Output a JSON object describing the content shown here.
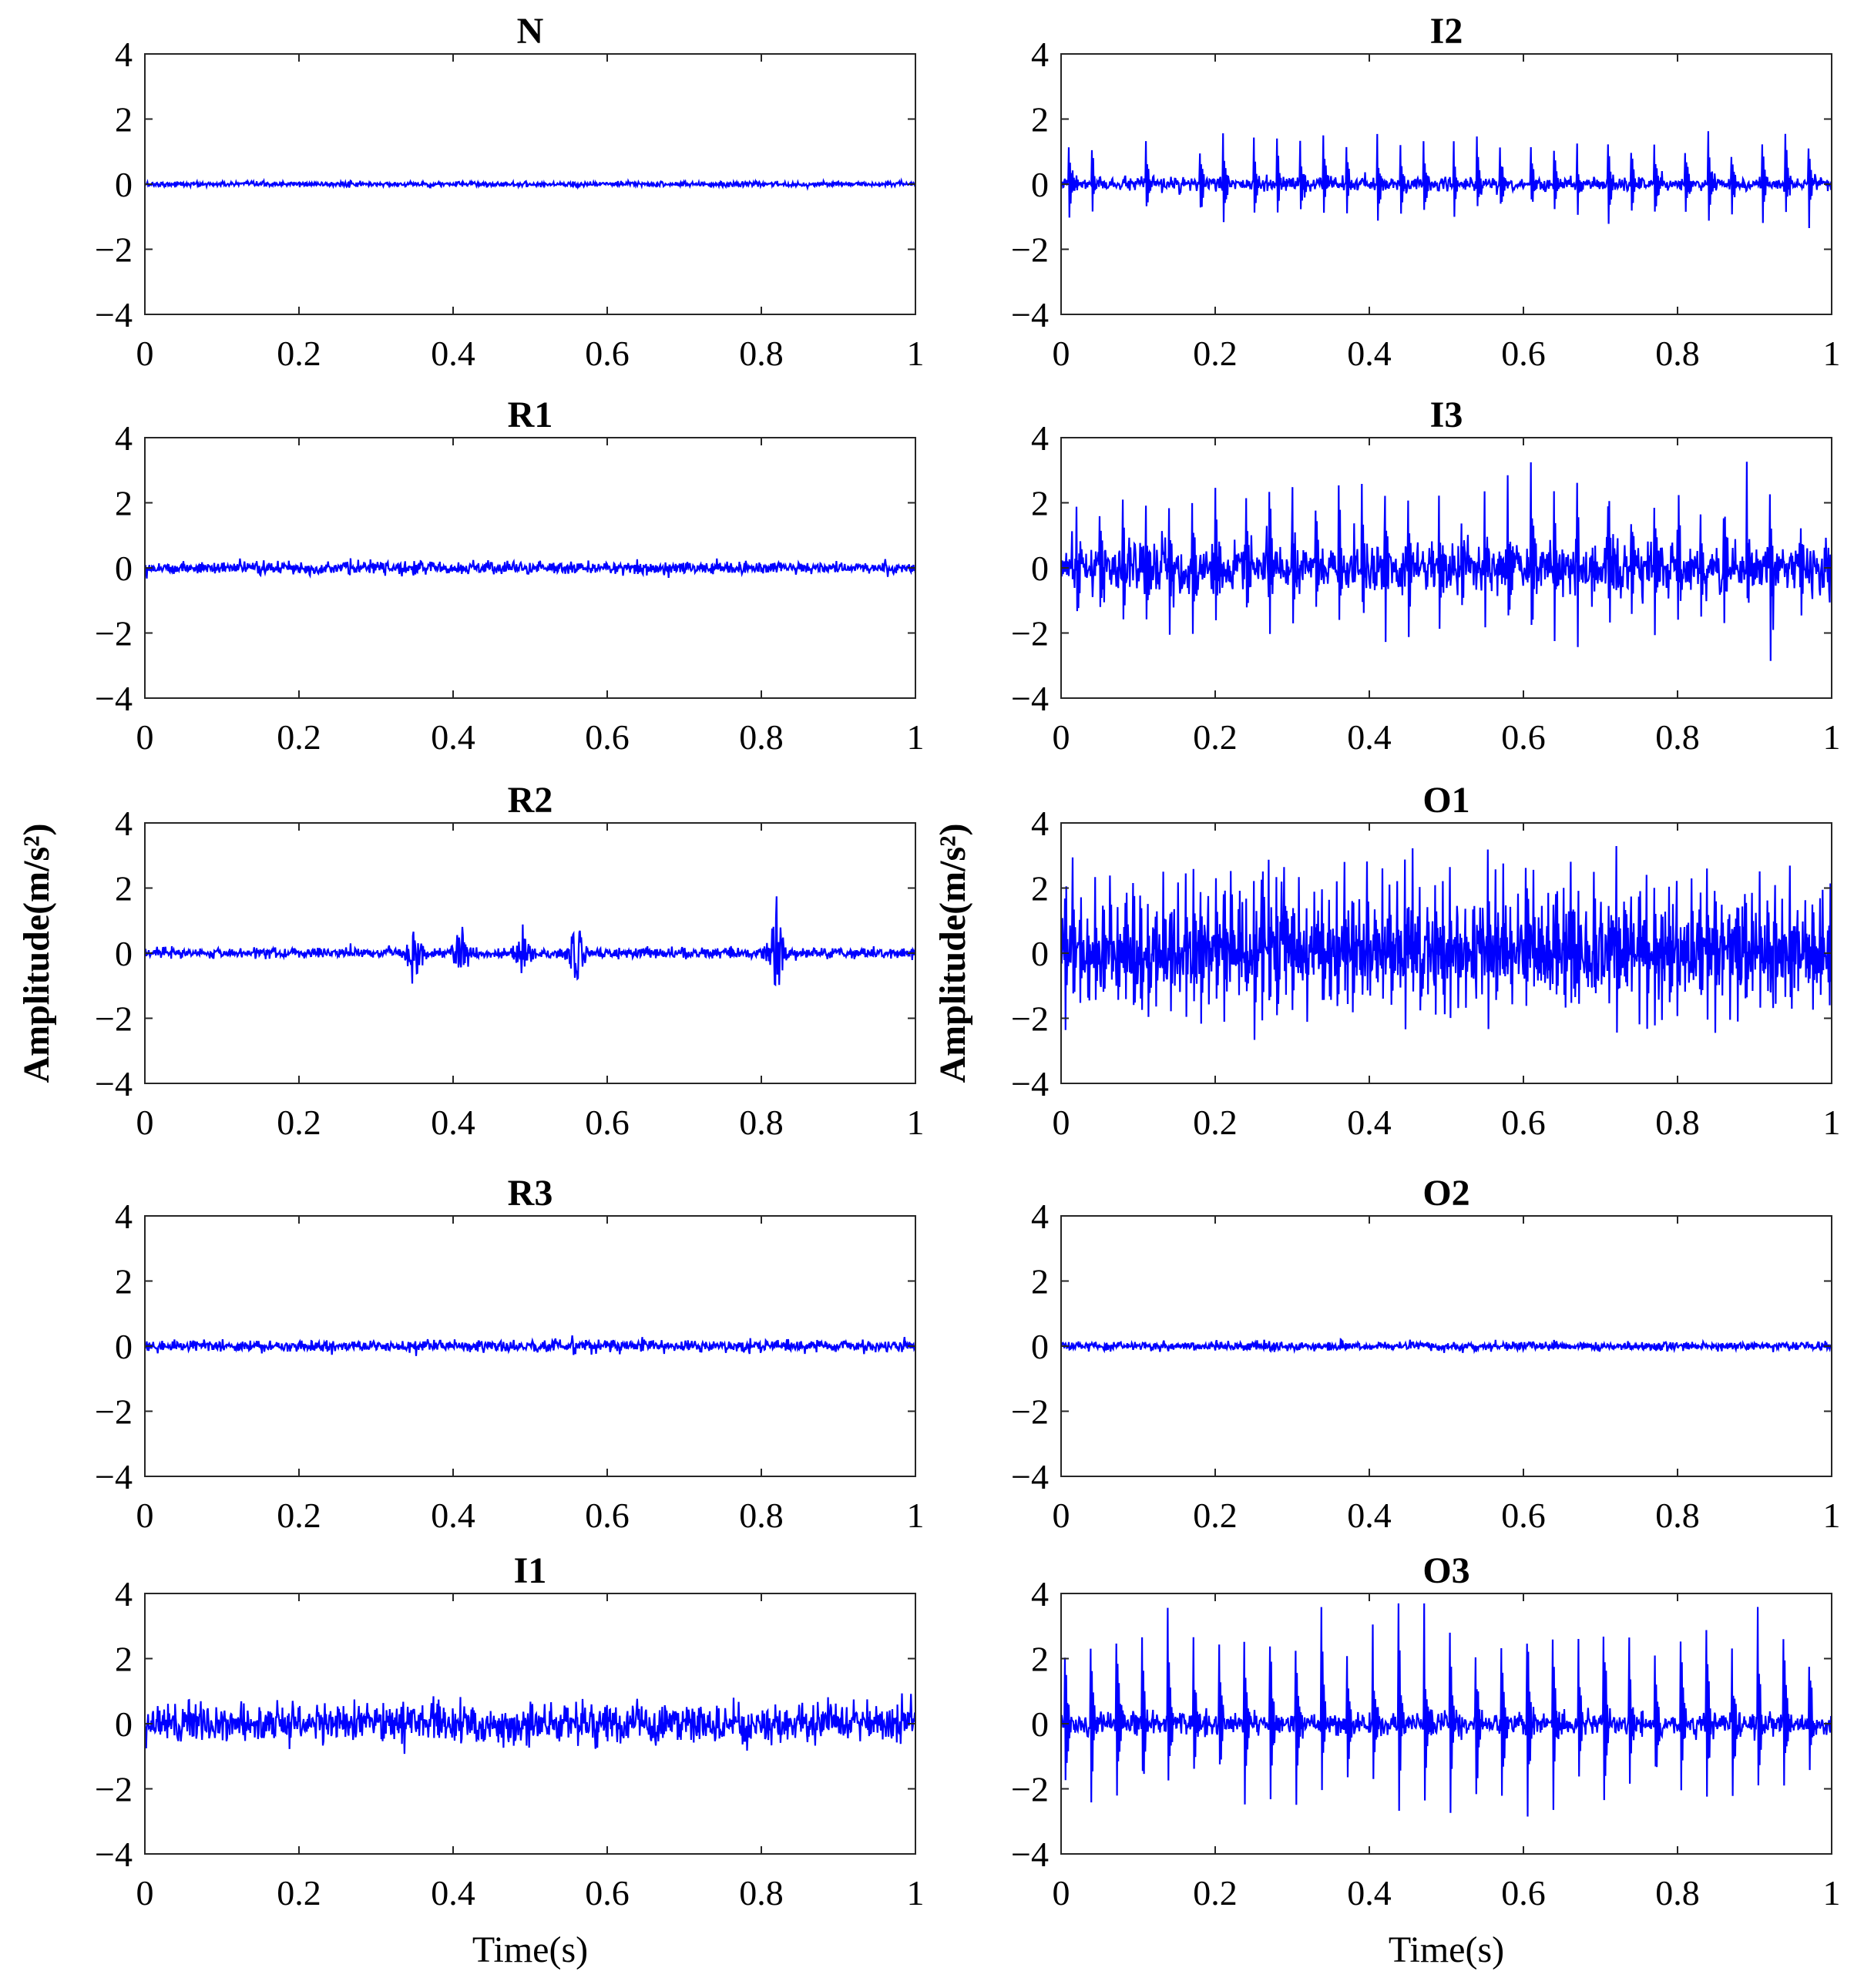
{
  "chart_data": [
    {
      "id": "N",
      "type": "line",
      "title": "N",
      "xlabel": "",
      "ylabel": "",
      "xlim": [
        0,
        1
      ],
      "ylim": [
        -4,
        4
      ],
      "xticks": [
        "0",
        "0.2",
        "0.4",
        "0.6",
        "0.8",
        "1"
      ],
      "yticks": [
        "4",
        "2",
        "0",
        "−2",
        "−4"
      ],
      "series": [
        {
          "color": "#0000ff",
          "noise": 0.07,
          "spikes": []
        }
      ]
    },
    {
      "id": "I2",
      "type": "line",
      "title": "I2",
      "xlabel": "",
      "ylabel": "",
      "xlim": [
        0,
        1
      ],
      "ylim": [
        -4,
        4
      ],
      "xticks": [
        "0",
        "0.2",
        "0.4",
        "0.6",
        "0.8",
        "1"
      ],
      "yticks": [
        "4",
        "2",
        "0",
        "−2",
        "−4"
      ],
      "series": [
        {
          "color": "#0000ff",
          "noise": 0.18,
          "spikes": [
            0.01,
            0.04,
            0.11,
            0.18,
            0.21,
            0.25,
            0.28,
            0.31,
            0.34,
            0.37,
            0.41,
            0.44,
            0.47,
            0.51,
            0.54,
            0.57,
            0.61,
            0.64,
            0.67,
            0.71,
            0.74,
            0.77,
            0.81,
            0.84,
            0.87,
            0.91,
            0.94,
            0.97
          ],
          "spike_amp": 1.8
        }
      ]
    },
    {
      "id": "R1",
      "type": "line",
      "title": "R1",
      "xlabel": "",
      "ylabel": "",
      "xlim": [
        0,
        1
      ],
      "ylim": [
        -4,
        4
      ],
      "xticks": [
        "0",
        "0.2",
        "0.4",
        "0.6",
        "0.8",
        "1"
      ],
      "yticks": [
        "4",
        "2",
        "0",
        "−2",
        "−4"
      ],
      "series": [
        {
          "color": "#0000ff",
          "noise": 0.17,
          "spikes": []
        }
      ]
    },
    {
      "id": "I3",
      "type": "line",
      "title": "I3",
      "xlabel": "",
      "ylabel": "",
      "xlim": [
        0,
        1
      ],
      "ylim": [
        -4,
        4
      ],
      "xticks": [
        "0",
        "0.2",
        "0.4",
        "0.6",
        "0.8",
        "1"
      ],
      "yticks": [
        "4",
        "2",
        "0",
        "−2",
        "−4"
      ],
      "series": [
        {
          "color": "#0000ff",
          "noise": 0.7,
          "spikes": [
            0.02,
            0.05,
            0.08,
            0.11,
            0.14,
            0.17,
            0.2,
            0.24,
            0.27,
            0.3,
            0.33,
            0.36,
            0.39,
            0.42,
            0.45,
            0.49,
            0.52,
            0.55,
            0.58,
            0.61,
            0.64,
            0.67,
            0.71,
            0.74,
            0.77,
            0.8,
            0.83,
            0.86,
            0.89,
            0.92,
            0.96
          ],
          "spike_amp": 3.0
        }
      ]
    },
    {
      "id": "R2",
      "type": "line",
      "title": "R2",
      "xlabel": "",
      "ylabel": "Amplitude(m/s²)",
      "xlim": [
        0,
        1
      ],
      "ylim": [
        -4,
        4
      ],
      "xticks": [
        "0",
        "0.2",
        "0.4",
        "0.6",
        "0.8",
        "1"
      ],
      "yticks": [
        "4",
        "2",
        "0",
        "−2",
        "−4"
      ],
      "series": [
        {
          "color": "#0000ff",
          "noise": 0.14,
          "bursts": [
            [
              0.35,
              1.3
            ],
            [
              0.41,
              1.0
            ],
            [
              0.49,
              0.8
            ],
            [
              0.56,
              1.3
            ],
            [
              0.82,
              1.7
            ]
          ]
        }
      ]
    },
    {
      "id": "O1",
      "type": "line",
      "title": "O1",
      "xlabel": "",
      "ylabel": "Amplitude(m/s²)",
      "xlim": [
        0,
        1
      ],
      "ylim": [
        -4,
        4
      ],
      "xticks": [
        "0",
        "0.2",
        "0.4",
        "0.6",
        "0.8",
        "1"
      ],
      "yticks": [
        "4",
        "2",
        "0",
        "−2",
        "−4"
      ],
      "series": [
        {
          "color": "#0000ff",
          "noise": 0.9,
          "spike_period": 0.0098,
          "spike_amp": 2.8
        }
      ]
    },
    {
      "id": "R3",
      "type": "line",
      "title": "R3",
      "xlabel": "",
      "ylabel": "",
      "xlim": [
        0,
        1
      ],
      "ylim": [
        -4,
        4
      ],
      "xticks": [
        "0",
        "0.2",
        "0.4",
        "0.6",
        "0.8",
        "1"
      ],
      "yticks": [
        "4",
        "2",
        "0",
        "−2",
        "−4"
      ],
      "series": [
        {
          "color": "#0000ff",
          "noise": 0.16,
          "spikes": []
        }
      ]
    },
    {
      "id": "O2",
      "type": "line",
      "title": "O2",
      "xlabel": "",
      "ylabel": "",
      "xlim": [
        0,
        1
      ],
      "ylim": [
        -4,
        4
      ],
      "xticks": [
        "0",
        "0.2",
        "0.4",
        "0.6",
        "0.8",
        "1"
      ],
      "yticks": [
        "4",
        "2",
        "0",
        "−2",
        "−4"
      ],
      "series": [
        {
          "color": "#0000ff",
          "noise": 0.12,
          "spikes": []
        }
      ]
    },
    {
      "id": "I1",
      "type": "line",
      "title": "I1",
      "xlabel": "Time(s)",
      "ylabel": "",
      "xlim": [
        0,
        1
      ],
      "ylim": [
        -4,
        4
      ],
      "xticks": [
        "0",
        "0.2",
        "0.4",
        "0.6",
        "0.8",
        "1"
      ],
      "yticks": [
        "4",
        "2",
        "0",
        "−2",
        "−4"
      ],
      "series": [
        {
          "color": "#0000ff",
          "noise": 0.55,
          "spikes": []
        }
      ]
    },
    {
      "id": "O3",
      "type": "line",
      "title": "O3",
      "xlabel": "Time(s)",
      "ylabel": "",
      "xlim": [
        0,
        1
      ],
      "ylim": [
        -4,
        4
      ],
      "xticks": [
        "0",
        "0.2",
        "0.4",
        "0.6",
        "0.8",
        "1"
      ],
      "yticks": [
        "4",
        "2",
        "0",
        "−2",
        "−4"
      ],
      "series": [
        {
          "color": "#0000ff",
          "noise": 0.3,
          "spike_period": 0.0333,
          "spike_amp": 4.0
        }
      ]
    }
  ]
}
